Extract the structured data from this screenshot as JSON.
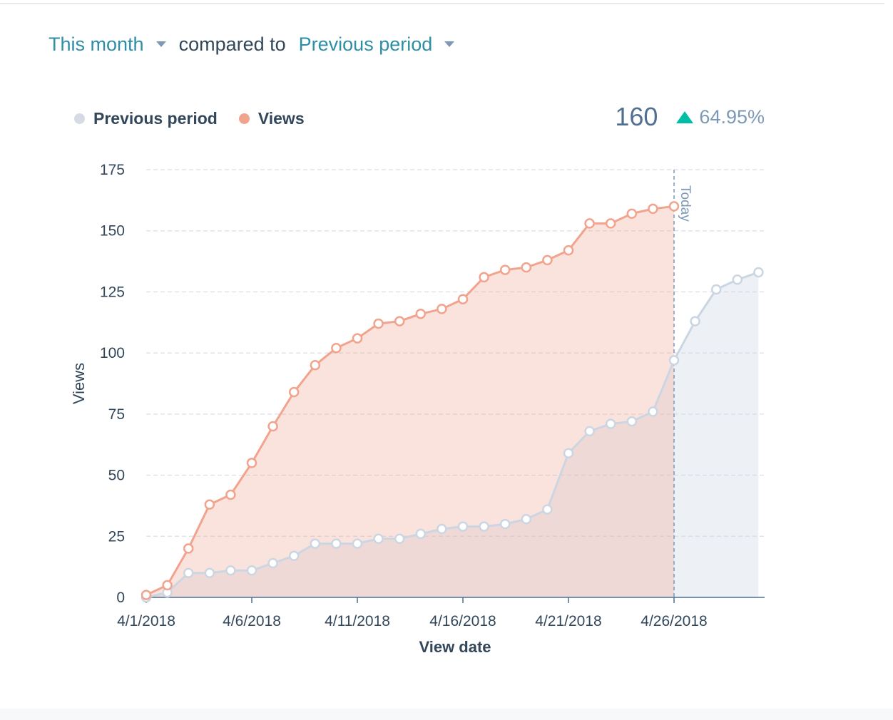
{
  "filters": {
    "range_label": "This month",
    "compared_label": "compared to",
    "comparison_label": "Previous period"
  },
  "summary": {
    "value": "160",
    "change": "64.95%",
    "trend": "up"
  },
  "colors": {
    "views": "#f2a38d",
    "previous": "#cbd6e2",
    "link": "#2d8ea5",
    "up": "#00bda5"
  },
  "chart_data": {
    "type": "area",
    "xlabel": "View date",
    "ylabel": "Views",
    "ylim": [
      0,
      175
    ],
    "yticks": [
      0,
      25,
      50,
      75,
      100,
      125,
      150,
      175
    ],
    "x_start": "4/1/2018",
    "x_ticks": [
      "4/1/2018",
      "4/6/2018",
      "4/11/2018",
      "4/16/2018",
      "4/21/2018",
      "4/26/2018"
    ],
    "today_marker": "Today",
    "today_date": "4/26/2018",
    "grid": true,
    "legend_position": "top-left",
    "series": [
      {
        "name": "Previous period",
        "color": "#cbd6e2",
        "x": [
          "4/1/2018",
          "4/2/2018",
          "4/3/2018",
          "4/4/2018",
          "4/5/2018",
          "4/6/2018",
          "4/7/2018",
          "4/8/2018",
          "4/9/2018",
          "4/10/2018",
          "4/11/2018",
          "4/12/2018",
          "4/13/2018",
          "4/14/2018",
          "4/15/2018",
          "4/16/2018",
          "4/17/2018",
          "4/18/2018",
          "4/19/2018",
          "4/20/2018",
          "4/21/2018",
          "4/22/2018",
          "4/23/2018",
          "4/24/2018",
          "4/25/2018",
          "4/26/2018",
          "4/27/2018",
          "4/28/2018",
          "4/29/2018",
          "4/30/2018"
        ],
        "values": [
          0,
          2,
          10,
          10,
          11,
          11,
          14,
          17,
          22,
          22,
          22,
          24,
          24,
          26,
          28,
          29,
          29,
          30,
          32,
          36,
          59,
          68,
          71,
          72,
          76,
          97,
          113,
          126,
          130,
          133
        ]
      },
      {
        "name": "Views",
        "color": "#f2a38d",
        "x": [
          "4/1/2018",
          "4/2/2018",
          "4/3/2018",
          "4/4/2018",
          "4/5/2018",
          "4/6/2018",
          "4/7/2018",
          "4/8/2018",
          "4/9/2018",
          "4/10/2018",
          "4/11/2018",
          "4/12/2018",
          "4/13/2018",
          "4/14/2018",
          "4/15/2018",
          "4/16/2018",
          "4/17/2018",
          "4/18/2018",
          "4/19/2018",
          "4/20/2018",
          "4/21/2018",
          "4/22/2018",
          "4/23/2018",
          "4/24/2018",
          "4/25/2018",
          "4/26/2018"
        ],
        "values": [
          1,
          5,
          20,
          38,
          42,
          55,
          70,
          84,
          95,
          102,
          106,
          112,
          113,
          116,
          118,
          122,
          131,
          134,
          135,
          138,
          142,
          153,
          153,
          157,
          159,
          160
        ]
      }
    ]
  }
}
